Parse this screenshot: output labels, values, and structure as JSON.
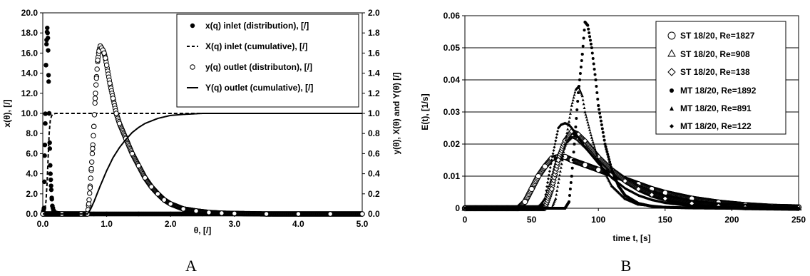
{
  "chart_data": [
    {
      "panel": "A",
      "type": "scatter",
      "xlabel": "θ, [/]",
      "ylabel": "x(θ), [/]",
      "y2label": "y(θ), X(θ) and Y(θ) [/]",
      "xlim": [
        0,
        5
      ],
      "ylim": [
        0,
        20
      ],
      "y2lim": [
        0,
        2
      ],
      "x_ticks": [
        "0.0",
        "1.0",
        "2.0",
        "3.0",
        "4.0",
        "5.0"
      ],
      "y_ticks": [
        "0.0",
        "2.0",
        "4.0",
        "6.0",
        "8.0",
        "10.0",
        "12.0",
        "14.0",
        "16.0",
        "18.0",
        "20.0"
      ],
      "y2_ticks": [
        "0.0",
        "0.2",
        "0.4",
        "0.6",
        "0.8",
        "1.0",
        "1.2",
        "1.4",
        "1.6",
        "1.8",
        "2.0"
      ],
      "grid": false,
      "legend_position": "top-right",
      "series": [
        {
          "name": "x(q) inlet (distribution), [/]",
          "style": "filled-circle",
          "axis": "left",
          "x": [
            0.0,
            0.01,
            0.02,
            0.03,
            0.04,
            0.05,
            0.06,
            0.07,
            0.08,
            0.09,
            0.1,
            0.11,
            0.12,
            0.13,
            0.14,
            0.15,
            0.17,
            0.2,
            0.3,
            0.5,
            0.8,
            1.0,
            1.5,
            2.0,
            2.5,
            3.0,
            3.5,
            4.0,
            4.5,
            5.0
          ],
          "y": [
            0.0,
            0.3,
            0.6,
            5.8,
            9.0,
            14.8,
            17.3,
            18.5,
            17.5,
            13.8,
            10.0,
            6.5,
            4.0,
            2.8,
            1.6,
            0.8,
            0.3,
            0.1,
            0.0,
            0.0,
            0.0,
            0.0,
            0.0,
            0.0,
            0.0,
            0.0,
            0.0,
            0.0,
            0.0,
            0.0
          ]
        },
        {
          "name": "X(q) inlet (cumulative), [/]",
          "style": "dashed-line",
          "axis": "right",
          "x": [
            0.0,
            0.02,
            0.04,
            0.06,
            0.08,
            0.1,
            0.12,
            0.15,
            0.2,
            0.5,
            1.0,
            2.0,
            3.0,
            4.0,
            5.0
          ],
          "y": [
            0.0,
            0.01,
            0.05,
            0.2,
            0.5,
            0.8,
            0.95,
            0.99,
            1.0,
            1.0,
            1.0,
            1.0,
            1.0,
            1.0,
            1.0
          ]
        },
        {
          "name": "y(q) outlet (distributon), [/]",
          "style": "open-circle",
          "axis": "left",
          "x": [
            0.0,
            0.3,
            0.6,
            0.7,
            0.72,
            0.74,
            0.76,
            0.78,
            0.8,
            0.82,
            0.84,
            0.86,
            0.88,
            0.9,
            0.92,
            0.94,
            0.96,
            0.98,
            1.0,
            1.05,
            1.1,
            1.15,
            1.2,
            1.3,
            1.4,
            1.5,
            1.6,
            1.7,
            1.8,
            1.9,
            2.0,
            2.2,
            2.4,
            2.6,
            2.8,
            3.0,
            3.5,
            4.0,
            4.5,
            5.0
          ],
          "y": [
            0.0,
            0.0,
            0.0,
            0.0,
            1.0,
            2.6,
            4.5,
            6.5,
            8.7,
            11.5,
            13.5,
            15.3,
            16.2,
            16.7,
            16.5,
            16.3,
            16.0,
            15.5,
            14.8,
            13.0,
            11.5,
            10.0,
            9.0,
            7.5,
            6.0,
            4.8,
            3.6,
            2.7,
            2.0,
            1.4,
            1.0,
            0.5,
            0.3,
            0.15,
            0.08,
            0.05,
            0.0,
            0.0,
            0.0,
            0.0
          ]
        },
        {
          "name": "Y(q) outlet (cumulative), [/]",
          "style": "solid-line",
          "axis": "right",
          "x": [
            0.0,
            0.7,
            0.75,
            0.8,
            0.9,
            1.0,
            1.1,
            1.2,
            1.3,
            1.4,
            1.5,
            1.6,
            1.8,
            2.0,
            2.2,
            2.5,
            3.0,
            5.0
          ],
          "y": [
            0.0,
            0.0,
            0.05,
            0.12,
            0.28,
            0.43,
            0.56,
            0.66,
            0.74,
            0.81,
            0.86,
            0.9,
            0.95,
            0.98,
            0.99,
            1.0,
            1.0,
            1.0
          ]
        }
      ]
    },
    {
      "panel": "B",
      "type": "scatter",
      "xlabel": "time t,  [s]",
      "ylabel": "E(t), [1/s]",
      "xlim": [
        0,
        250
      ],
      "ylim": [
        0,
        0.06
      ],
      "x_ticks": [
        "0",
        "50",
        "100",
        "150",
        "200",
        "250"
      ],
      "y_ticks": [
        "0",
        "0.01",
        "0.02",
        "0.03",
        "0.04",
        "0.05",
        "0.06"
      ],
      "grid": true,
      "legend_position": "top-right",
      "series": [
        {
          "name": "ST 18/20, Re=1827",
          "style": "open-circle",
          "x": [
            0,
            40,
            45,
            50,
            55,
            60,
            65,
            70,
            75,
            80,
            90,
            100,
            110,
            120,
            130,
            140,
            150,
            170,
            190,
            210,
            230,
            250
          ],
          "y": [
            0,
            0,
            0.002,
            0.006,
            0.01,
            0.013,
            0.0155,
            0.016,
            0.016,
            0.015,
            0.0135,
            0.012,
            0.0105,
            0.009,
            0.0075,
            0.006,
            0.0048,
            0.003,
            0.0018,
            0.001,
            0.0005,
            0.0003
          ]
        },
        {
          "name": "ST 18/20, Re=908",
          "style": "open-triangle",
          "x": [
            0,
            55,
            60,
            65,
            70,
            75,
            80,
            85,
            90,
            100,
            110,
            120,
            130,
            140,
            150,
            170,
            190,
            210,
            230,
            250
          ],
          "y": [
            0,
            0,
            0.002,
            0.008,
            0.016,
            0.021,
            0.023,
            0.022,
            0.02,
            0.016,
            0.012,
            0.009,
            0.0065,
            0.0047,
            0.0033,
            0.0017,
            0.0009,
            0.0005,
            0.0002,
            0.0001
          ]
        },
        {
          "name": "ST 18/20, Re=138",
          "style": "open-diamond",
          "x": [
            0,
            60,
            65,
            70,
            75,
            80,
            85,
            90,
            100,
            110,
            120,
            130,
            140,
            150,
            170,
            190,
            210,
            250
          ],
          "y": [
            0,
            0,
            0.006,
            0.015,
            0.021,
            0.024,
            0.023,
            0.021,
            0.016,
            0.012,
            0.0085,
            0.006,
            0.0042,
            0.003,
            0.0015,
            0.0007,
            0.0003,
            0.0001
          ]
        },
        {
          "name": "MT 18/20, Re=1892",
          "style": "filled-circle",
          "x": [
            0,
            75,
            78,
            80,
            82,
            85,
            88,
            90,
            92,
            95,
            98,
            100,
            105,
            110,
            115,
            120,
            130,
            140,
            150,
            170,
            200,
            250
          ],
          "y": [
            0,
            0,
            0.002,
            0.01,
            0.02,
            0.036,
            0.048,
            0.058,
            0.057,
            0.05,
            0.04,
            0.032,
            0.02,
            0.012,
            0.007,
            0.004,
            0.0015,
            0.0006,
            0.0003,
            0.0001,
            0,
            0
          ]
        },
        {
          "name": "MT 18/20, Re=891",
          "style": "filled-triangle",
          "x": [
            0,
            65,
            68,
            70,
            73,
            75,
            78,
            80,
            83,
            85,
            88,
            90,
            95,
            100,
            110,
            120,
            130,
            150,
            180,
            250
          ],
          "y": [
            0,
            0,
            0.003,
            0.008,
            0.015,
            0.02,
            0.027,
            0.032,
            0.037,
            0.038,
            0.035,
            0.03,
            0.022,
            0.015,
            0.007,
            0.003,
            0.0012,
            0.0003,
            0.0001,
            0
          ]
        },
        {
          "name": "MT 18/20, Re=122",
          "style": "filled-diamond",
          "x": [
            0,
            55,
            60,
            62,
            65,
            68,
            70,
            72,
            75,
            78,
            80,
            85,
            90,
            100,
            110,
            120,
            130,
            140,
            150,
            170,
            200,
            250
          ],
          "y": [
            0,
            0,
            0.003,
            0.008,
            0.015,
            0.021,
            0.025,
            0.026,
            0.0265,
            0.026,
            0.025,
            0.022,
            0.019,
            0.014,
            0.0095,
            0.0062,
            0.004,
            0.0026,
            0.0017,
            0.0007,
            0.0002,
            0
          ]
        }
      ]
    }
  ],
  "panel_labels": [
    "A",
    "B"
  ]
}
